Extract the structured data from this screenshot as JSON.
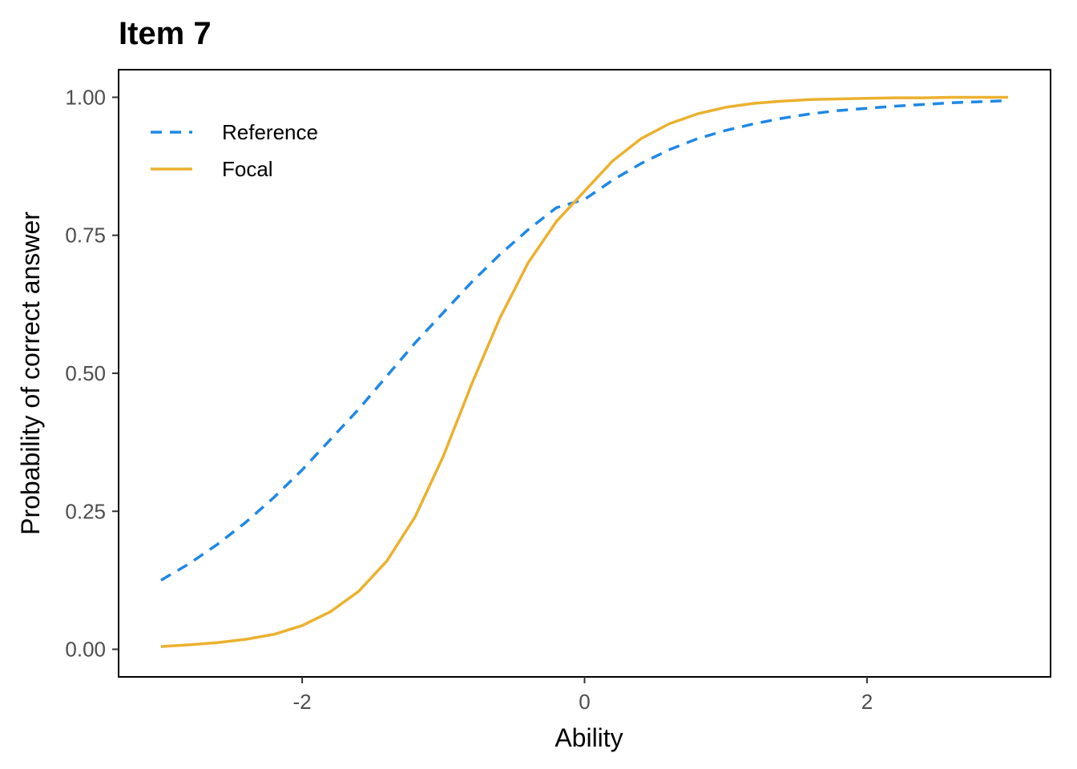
{
  "chart_data": {
    "type": "line",
    "title": "Item 7",
    "xlabel": "Ability",
    "ylabel": "Probability of correct answer",
    "xlim": [
      -3.3,
      3.3
    ],
    "ylim": [
      -0.05,
      1.05
    ],
    "x_ticks": [
      -2,
      0,
      2
    ],
    "x_tick_labels": [
      "-2",
      "0",
      "2"
    ],
    "y_ticks": [
      0,
      0.25,
      0.5,
      0.75,
      1
    ],
    "y_tick_labels": [
      "0.00",
      "0.25",
      "0.50",
      "0.75",
      "1.00"
    ],
    "grid": false,
    "legend_position": "top-left",
    "x": [
      -3.0,
      -2.8,
      -2.6,
      -2.4,
      -2.2,
      -2.0,
      -1.8,
      -1.6,
      -1.4,
      -1.2,
      -1.0,
      -0.8,
      -0.6,
      -0.4,
      -0.2,
      0.0,
      0.2,
      0.4,
      0.6,
      0.8,
      1.0,
      1.2,
      1.4,
      1.6,
      1.8,
      2.0,
      2.2,
      2.4,
      2.6,
      2.8,
      3.0
    ],
    "series": [
      {
        "name": "Reference",
        "color": "#1e88e5",
        "dash": "dashed",
        "values": [
          0.125,
          0.155,
          0.19,
          0.23,
          0.275,
          0.325,
          0.38,
          0.435,
          0.495,
          0.555,
          0.61,
          0.665,
          0.715,
          0.76,
          0.8,
          0.815,
          0.85,
          0.88,
          0.905,
          0.925,
          0.94,
          0.952,
          0.962,
          0.97,
          0.976,
          0.98,
          0.984,
          0.987,
          0.99,
          0.992,
          0.994
        ]
      },
      {
        "name": "Focal",
        "color": "#ebb12e",
        "dash": "solid",
        "values": [
          0.005,
          0.008,
          0.012,
          0.018,
          0.027,
          0.043,
          0.068,
          0.105,
          0.16,
          0.24,
          0.35,
          0.48,
          0.6,
          0.7,
          0.775,
          0.83,
          0.885,
          0.925,
          0.952,
          0.97,
          0.982,
          0.989,
          0.993,
          0.996,
          0.997,
          0.998,
          0.999,
          0.999,
          1.0,
          1.0,
          1.0
        ]
      }
    ]
  }
}
